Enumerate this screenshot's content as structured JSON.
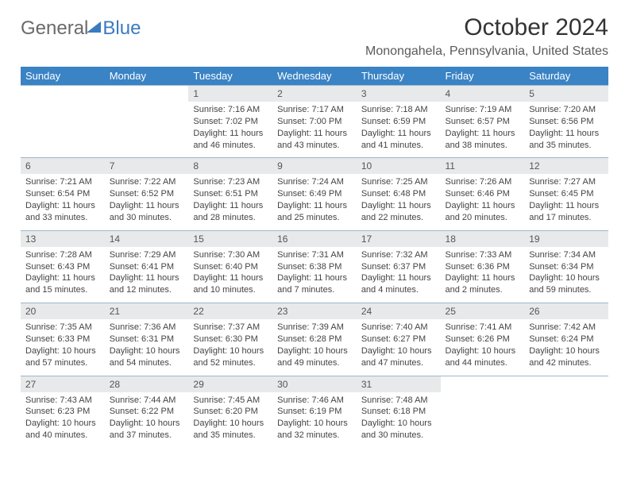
{
  "logo": {
    "general": "General",
    "blue": "Blue"
  },
  "title": {
    "month": "October 2024",
    "location": "Monongahela, Pennsylvania, United States"
  },
  "dow": [
    "Sunday",
    "Monday",
    "Tuesday",
    "Wednesday",
    "Thursday",
    "Friday",
    "Saturday"
  ],
  "colors": {
    "header_bg": "#3a83c5",
    "daynum_bg": "#e7e9ea",
    "rule": "#9fb7c9"
  },
  "weeks": [
    [
      null,
      null,
      {
        "n": "1",
        "sr": "Sunrise: 7:16 AM",
        "ss": "Sunset: 7:02 PM",
        "d1": "Daylight: 11 hours",
        "d2": "and 46 minutes."
      },
      {
        "n": "2",
        "sr": "Sunrise: 7:17 AM",
        "ss": "Sunset: 7:00 PM",
        "d1": "Daylight: 11 hours",
        "d2": "and 43 minutes."
      },
      {
        "n": "3",
        "sr": "Sunrise: 7:18 AM",
        "ss": "Sunset: 6:59 PM",
        "d1": "Daylight: 11 hours",
        "d2": "and 41 minutes."
      },
      {
        "n": "4",
        "sr": "Sunrise: 7:19 AM",
        "ss": "Sunset: 6:57 PM",
        "d1": "Daylight: 11 hours",
        "d2": "and 38 minutes."
      },
      {
        "n": "5",
        "sr": "Sunrise: 7:20 AM",
        "ss": "Sunset: 6:56 PM",
        "d1": "Daylight: 11 hours",
        "d2": "and 35 minutes."
      }
    ],
    [
      {
        "n": "6",
        "sr": "Sunrise: 7:21 AM",
        "ss": "Sunset: 6:54 PM",
        "d1": "Daylight: 11 hours",
        "d2": "and 33 minutes."
      },
      {
        "n": "7",
        "sr": "Sunrise: 7:22 AM",
        "ss": "Sunset: 6:52 PM",
        "d1": "Daylight: 11 hours",
        "d2": "and 30 minutes."
      },
      {
        "n": "8",
        "sr": "Sunrise: 7:23 AM",
        "ss": "Sunset: 6:51 PM",
        "d1": "Daylight: 11 hours",
        "d2": "and 28 minutes."
      },
      {
        "n": "9",
        "sr": "Sunrise: 7:24 AM",
        "ss": "Sunset: 6:49 PM",
        "d1": "Daylight: 11 hours",
        "d2": "and 25 minutes."
      },
      {
        "n": "10",
        "sr": "Sunrise: 7:25 AM",
        "ss": "Sunset: 6:48 PM",
        "d1": "Daylight: 11 hours",
        "d2": "and 22 minutes."
      },
      {
        "n": "11",
        "sr": "Sunrise: 7:26 AM",
        "ss": "Sunset: 6:46 PM",
        "d1": "Daylight: 11 hours",
        "d2": "and 20 minutes."
      },
      {
        "n": "12",
        "sr": "Sunrise: 7:27 AM",
        "ss": "Sunset: 6:45 PM",
        "d1": "Daylight: 11 hours",
        "d2": "and 17 minutes."
      }
    ],
    [
      {
        "n": "13",
        "sr": "Sunrise: 7:28 AM",
        "ss": "Sunset: 6:43 PM",
        "d1": "Daylight: 11 hours",
        "d2": "and 15 minutes."
      },
      {
        "n": "14",
        "sr": "Sunrise: 7:29 AM",
        "ss": "Sunset: 6:41 PM",
        "d1": "Daylight: 11 hours",
        "d2": "and 12 minutes."
      },
      {
        "n": "15",
        "sr": "Sunrise: 7:30 AM",
        "ss": "Sunset: 6:40 PM",
        "d1": "Daylight: 11 hours",
        "d2": "and 10 minutes."
      },
      {
        "n": "16",
        "sr": "Sunrise: 7:31 AM",
        "ss": "Sunset: 6:38 PM",
        "d1": "Daylight: 11 hours",
        "d2": "and 7 minutes."
      },
      {
        "n": "17",
        "sr": "Sunrise: 7:32 AM",
        "ss": "Sunset: 6:37 PM",
        "d1": "Daylight: 11 hours",
        "d2": "and 4 minutes."
      },
      {
        "n": "18",
        "sr": "Sunrise: 7:33 AM",
        "ss": "Sunset: 6:36 PM",
        "d1": "Daylight: 11 hours",
        "d2": "and 2 minutes."
      },
      {
        "n": "19",
        "sr": "Sunrise: 7:34 AM",
        "ss": "Sunset: 6:34 PM",
        "d1": "Daylight: 10 hours",
        "d2": "and 59 minutes."
      }
    ],
    [
      {
        "n": "20",
        "sr": "Sunrise: 7:35 AM",
        "ss": "Sunset: 6:33 PM",
        "d1": "Daylight: 10 hours",
        "d2": "and 57 minutes."
      },
      {
        "n": "21",
        "sr": "Sunrise: 7:36 AM",
        "ss": "Sunset: 6:31 PM",
        "d1": "Daylight: 10 hours",
        "d2": "and 54 minutes."
      },
      {
        "n": "22",
        "sr": "Sunrise: 7:37 AM",
        "ss": "Sunset: 6:30 PM",
        "d1": "Daylight: 10 hours",
        "d2": "and 52 minutes."
      },
      {
        "n": "23",
        "sr": "Sunrise: 7:39 AM",
        "ss": "Sunset: 6:28 PM",
        "d1": "Daylight: 10 hours",
        "d2": "and 49 minutes."
      },
      {
        "n": "24",
        "sr": "Sunrise: 7:40 AM",
        "ss": "Sunset: 6:27 PM",
        "d1": "Daylight: 10 hours",
        "d2": "and 47 minutes."
      },
      {
        "n": "25",
        "sr": "Sunrise: 7:41 AM",
        "ss": "Sunset: 6:26 PM",
        "d1": "Daylight: 10 hours",
        "d2": "and 44 minutes."
      },
      {
        "n": "26",
        "sr": "Sunrise: 7:42 AM",
        "ss": "Sunset: 6:24 PM",
        "d1": "Daylight: 10 hours",
        "d2": "and 42 minutes."
      }
    ],
    [
      {
        "n": "27",
        "sr": "Sunrise: 7:43 AM",
        "ss": "Sunset: 6:23 PM",
        "d1": "Daylight: 10 hours",
        "d2": "and 40 minutes."
      },
      {
        "n": "28",
        "sr": "Sunrise: 7:44 AM",
        "ss": "Sunset: 6:22 PM",
        "d1": "Daylight: 10 hours",
        "d2": "and 37 minutes."
      },
      {
        "n": "29",
        "sr": "Sunrise: 7:45 AM",
        "ss": "Sunset: 6:20 PM",
        "d1": "Daylight: 10 hours",
        "d2": "and 35 minutes."
      },
      {
        "n": "30",
        "sr": "Sunrise: 7:46 AM",
        "ss": "Sunset: 6:19 PM",
        "d1": "Daylight: 10 hours",
        "d2": "and 32 minutes."
      },
      {
        "n": "31",
        "sr": "Sunrise: 7:48 AM",
        "ss": "Sunset: 6:18 PM",
        "d1": "Daylight: 10 hours",
        "d2": "and 30 minutes."
      },
      null,
      null
    ]
  ]
}
